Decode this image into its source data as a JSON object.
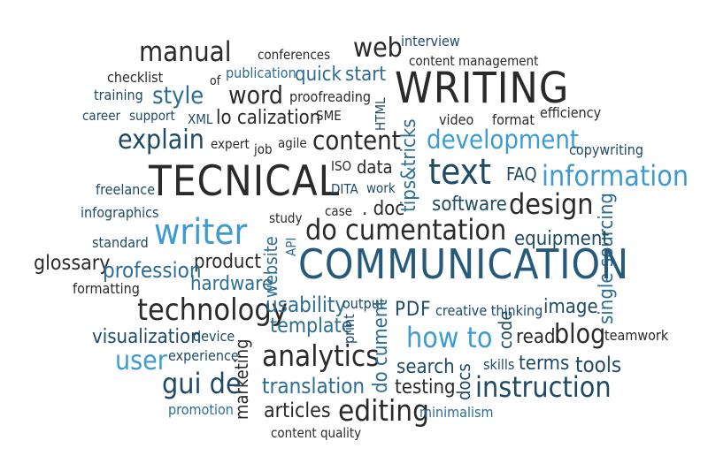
{
  "words": [
    {
      "text": "manual",
      "color": "#2a2a2a"
    },
    {
      "text": "conferences",
      "color": "#2a2a2a"
    },
    {
      "text": "web",
      "color": "#2a2a2a"
    },
    {
      "text": "interview",
      "color": "#1f4a66"
    },
    {
      "text": "checklist",
      "color": "#2a2a2a"
    },
    {
      "text": "publication",
      "color": "#2b6d94"
    },
    {
      "text": "quick",
      "color": "#2b6d94"
    },
    {
      "text": "start",
      "color": "#2b6d94"
    },
    {
      "text": "content management",
      "color": "#2a2a2a"
    },
    {
      "text": "of",
      "color": "#2a2a2a"
    },
    {
      "text": "WRITING",
      "color": "#2a2a2a"
    },
    {
      "text": "training",
      "color": "#1f4a66"
    },
    {
      "text": "style",
      "color": "#2b6d94"
    },
    {
      "text": "word",
      "color": "#2a2a2a"
    },
    {
      "text": "proofreading",
      "color": "#2a2a2a"
    },
    {
      "text": "HTML",
      "color": "#1f4a66"
    },
    {
      "text": "career",
      "color": "#1f4a66"
    },
    {
      "text": "support",
      "color": "#1f4a66"
    },
    {
      "text": "XML",
      "color": "#1f4a66"
    },
    {
      "text": "lo calization",
      "color": "#2a2a2a"
    },
    {
      "text": "SME",
      "color": "#2a2a2a"
    },
    {
      "text": "video",
      "color": "#2a2a2a"
    },
    {
      "text": "format",
      "color": "#2a2a2a"
    },
    {
      "text": "efficiency",
      "color": "#2a2a2a"
    },
    {
      "text": "explain",
      "color": "#1f4a66"
    },
    {
      "text": "expert",
      "color": "#2a2a2a"
    },
    {
      "text": "job",
      "color": "#2a2a2a"
    },
    {
      "text": "agile",
      "color": "#2a2a2a"
    },
    {
      "text": "content",
      "color": "#2a2a2a"
    },
    {
      "text": "tips&tricks",
      "color": "#2b6d94"
    },
    {
      "text": "development",
      "color": "#3e9bd2"
    },
    {
      "text": "copywriting",
      "color": "#1f4a66"
    },
    {
      "text": "TECNICAL",
      "color": "#2a2a2a"
    },
    {
      "text": "ISO",
      "color": "#2a2a2a"
    },
    {
      "text": "data",
      "color": "#2a2a2a"
    },
    {
      "text": "text",
      "color": "#1f4a66"
    },
    {
      "text": "FAQ",
      "color": "#1f4a66"
    },
    {
      "text": "information",
      "color": "#3e9bd2"
    },
    {
      "text": "freelance",
      "color": "#1f4a66"
    },
    {
      "text": "DITA",
      "color": "#1f4a66"
    },
    {
      "text": "work",
      "color": "#1f4a66"
    },
    {
      "text": "infographics",
      "color": "#1f4a66"
    },
    {
      "text": ". doc",
      "color": "#2a2a2a"
    },
    {
      "text": "case",
      "color": "#2a2a2a"
    },
    {
      "text": "study",
      "color": "#2a2a2a"
    },
    {
      "text": "software",
      "color": "#1f4a66"
    },
    {
      "text": "design",
      "color": "#2a2a2a"
    },
    {
      "text": "writer",
      "color": "#3e9bd2"
    },
    {
      "text": "API",
      "color": "#2b6d94"
    },
    {
      "text": "do cumentation",
      "color": "#2a2a2a"
    },
    {
      "text": "single sourcing",
      "color": "#2b6d94"
    },
    {
      "text": "standard",
      "color": "#1f4a66"
    },
    {
      "text": "equipment",
      "color": "#1f4a66"
    },
    {
      "text": "glossary",
      "color": "#2a2a2a"
    },
    {
      "text": "product",
      "color": "#2a2a2a"
    },
    {
      "text": "website",
      "color": "#2b6d94"
    },
    {
      "text": "COMMUNICATION",
      "color": "#255a7a"
    },
    {
      "text": "profession",
      "color": "#2b6d94"
    },
    {
      "text": "hardware",
      "color": "#2b6d94"
    },
    {
      "text": "formatting",
      "color": "#2a2a2a"
    },
    {
      "text": "technology",
      "color": "#2a2a2a"
    },
    {
      "text": "usability",
      "color": "#2b6d94"
    },
    {
      "text": "output",
      "color": "#1f4a66"
    },
    {
      "text": "PDF",
      "color": "#1f4a66"
    },
    {
      "text": "creative thinking",
      "color": "#1f4a66"
    },
    {
      "text": "image",
      "color": "#1f4a66"
    },
    {
      "text": "template",
      "color": "#2b6d94"
    },
    {
      "text": "print",
      "color": "#1f4a66"
    },
    {
      "text": "code",
      "color": "#1f4a66"
    },
    {
      "text": "visualization",
      "color": "#1f4a66"
    },
    {
      "text": "device",
      "color": "#1f4a66"
    },
    {
      "text": "how to",
      "color": "#3e9bd2"
    },
    {
      "text": "read",
      "color": "#2a2a2a"
    },
    {
      "text": "blog",
      "color": "#2a2a2a"
    },
    {
      "text": "teamwork",
      "color": "#2a2a2a"
    },
    {
      "text": "analytics",
      "color": "#2a2a2a"
    },
    {
      "text": "user",
      "color": "#3e9bd2"
    },
    {
      "text": "experience",
      "color": "#1f4a66"
    },
    {
      "text": "do cument",
      "color": "#2b6d94"
    },
    {
      "text": "search",
      "color": "#1f4a66"
    },
    {
      "text": "skills",
      "color": "#1f4a66"
    },
    {
      "text": "terms",
      "color": "#1f4a66"
    },
    {
      "text": "tools",
      "color": "#1f4a66"
    },
    {
      "text": "marketing",
      "color": "#2a2a2a"
    },
    {
      "text": "gui de",
      "color": "#1f4a66"
    },
    {
      "text": "docs",
      "color": "#1f4a66"
    },
    {
      "text": "testing",
      "color": "#2a2a2a"
    },
    {
      "text": "instruction",
      "color": "#1f4a66"
    },
    {
      "text": "translation",
      "color": "#2b6d94"
    },
    {
      "text": "promotion",
      "color": "#2b6d94"
    },
    {
      "text": "articles",
      "color": "#2a2a2a"
    },
    {
      "text": "editing",
      "color": "#2a2a2a"
    },
    {
      "text": "minimalism",
      "color": "#2b6d94"
    },
    {
      "text": "content quality",
      "color": "#2a2a2a"
    }
  ]
}
